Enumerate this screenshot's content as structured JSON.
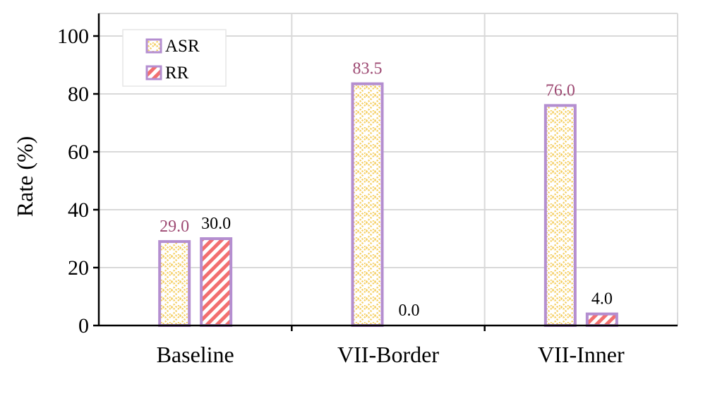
{
  "chart_data": {
    "type": "bar",
    "categories": [
      "Baseline",
      "VII-Border",
      "VII-Inner"
    ],
    "series": [
      {
        "name": "ASR",
        "values": [
          29.0,
          83.5,
          76.0
        ],
        "fill": "#ffffff",
        "pattern_color": "#f5cf62",
        "edge": "#b48ed0",
        "label_color": "#9e4a73"
      },
      {
        "name": "RR",
        "values": [
          30.0,
          0.0,
          4.0
        ],
        "fill": "#ffffff",
        "pattern_color": "#f26f6f",
        "edge": "#b48ed0",
        "label_color": "#000000"
      }
    ],
    "data_labels": [
      [
        "29.0",
        "83.5",
        "76.0"
      ],
      [
        "30.0",
        "0.0",
        "4.0"
      ]
    ],
    "xlabel": "",
    "ylabel": "Rate (%)",
    "ylim": [
      0,
      100
    ],
    "yticks": [
      0,
      20,
      40,
      60,
      80,
      100
    ],
    "grid": true,
    "legend": "top-left"
  }
}
